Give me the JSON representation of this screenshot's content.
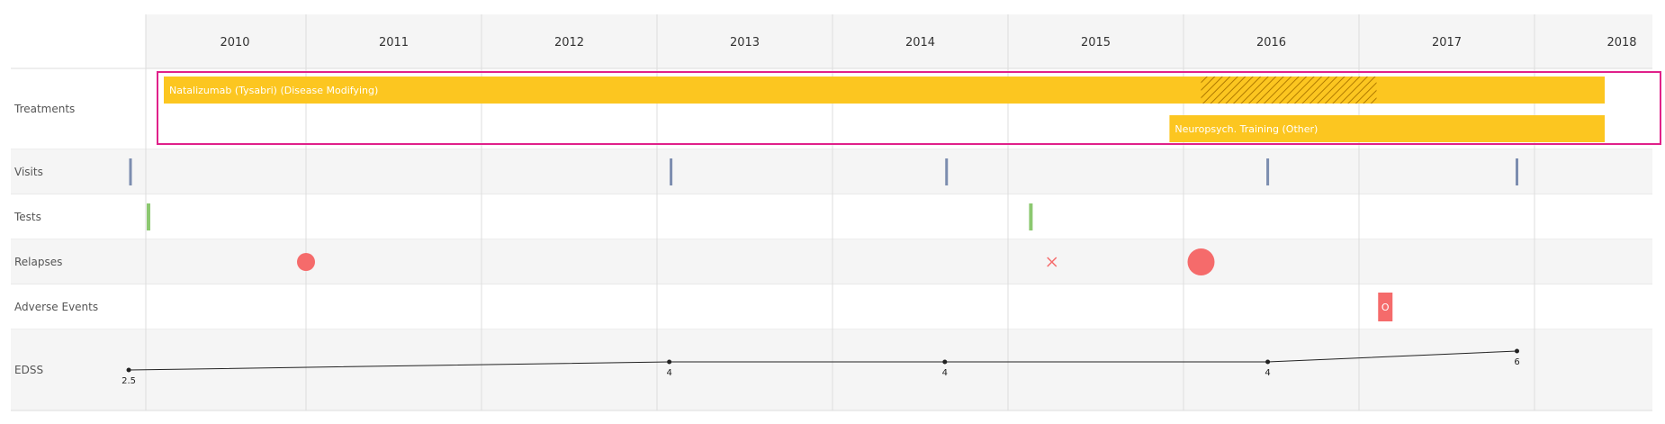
{
  "chart_data": {
    "type": "timeline",
    "years": [
      "2010",
      "2011",
      "2012",
      "2013",
      "2014",
      "2015",
      "2016",
      "2017",
      "2018"
    ],
    "rows": [
      "Treatments",
      "Visits",
      "Tests",
      "Relapses",
      "Adverse Events",
      "EDSS"
    ],
    "treatments": [
      {
        "label": "Natalizumab (Tysabri) (Disease Modifying)",
        "start": 2009.62,
        "end": 2018.4,
        "hatch_start": 2016.1,
        "hatch_end": 2017.1,
        "lane": 0
      },
      {
        "label": "Neuropsych. Training (Other)",
        "start": 2015.92,
        "end": 2018.4,
        "lane": 1
      }
    ],
    "visits": [
      2010.0,
      2013.08,
      2014.65,
      2016.48,
      2017.9
    ],
    "tests": [
      2009.62,
      2015.12
    ],
    "relapses": [
      {
        "date": 2011.0,
        "kind": "circle",
        "size": "medium"
      },
      {
        "date": 2015.25,
        "kind": "cross",
        "size": "small"
      },
      {
        "date": 2016.1,
        "kind": "circle",
        "size": "large"
      }
    ],
    "adverse_events": [
      {
        "date": 2017.15,
        "label": "O"
      }
    ],
    "edss": [
      {
        "date": 2009.99,
        "value": 2.5,
        "label": "2.5"
      },
      {
        "date": 2013.07,
        "value": 4,
        "label": "4"
      },
      {
        "date": 2014.64,
        "value": 4,
        "label": "4"
      },
      {
        "date": 2016.48,
        "value": 4,
        "label": "4"
      },
      {
        "date": 2017.9,
        "value": 6,
        "label": "6"
      }
    ],
    "edss_ylim": [
      0,
      10
    ],
    "colors": {
      "treatment_bar": "#FCC620",
      "hatch": "#B07A00",
      "visit": "#7C8DAF",
      "test": "#8CC870",
      "relapse": "#F56B6B",
      "adverse": "#F56B6B",
      "edss_line": "#222222",
      "highlight_border": "#E0218A",
      "grid": "#dddddd",
      "alt_row": "#f5f5f5"
    }
  }
}
